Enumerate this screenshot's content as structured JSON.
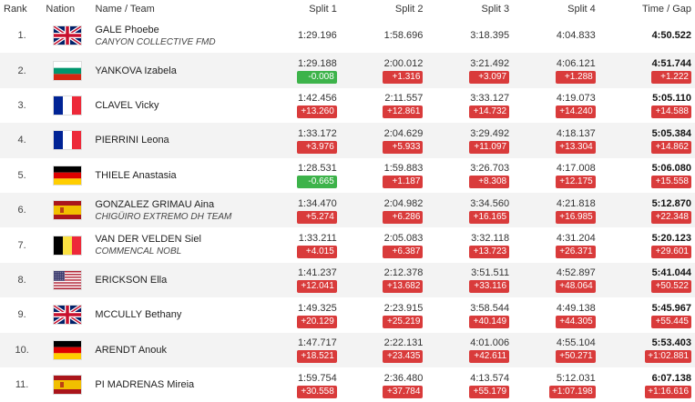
{
  "headers": {
    "rank": "Rank",
    "nation": "Nation",
    "name_team": "Name / Team",
    "split1": "Split 1",
    "split2": "Split 2",
    "split3": "Split 3",
    "split4": "Split 4",
    "time_gap": "Time / Gap"
  },
  "colors": {
    "gap_behind": "#d93b3b",
    "gap_ahead": "#3db34a",
    "row_alt": "#f3f3f3"
  },
  "rows": [
    {
      "rank": "1.",
      "flag": "gb",
      "name": "GALE Phoebe",
      "team": "CANYON COLLECTIVE FMD",
      "splits": [
        {
          "t": "1:29.196",
          "g": ""
        },
        {
          "t": "1:58.696",
          "g": ""
        },
        {
          "t": "3:18.395",
          "g": ""
        },
        {
          "t": "4:04.833",
          "g": ""
        }
      ],
      "time": "4:50.522",
      "gap": ""
    },
    {
      "rank": "2.",
      "flag": "bg",
      "name": "YANKOVA Izabela",
      "team": "",
      "splits": [
        {
          "t": "1:29.188",
          "g": "-0.008",
          "c": "green"
        },
        {
          "t": "2:00.012",
          "g": "+1.316",
          "c": "red"
        },
        {
          "t": "3:21.492",
          "g": "+3.097",
          "c": "red"
        },
        {
          "t": "4:06.121",
          "g": "+1.288",
          "c": "red"
        }
      ],
      "time": "4:51.744",
      "gap": "+1.222"
    },
    {
      "rank": "3.",
      "flag": "fr",
      "name": "CLAVEL Vicky",
      "team": "",
      "splits": [
        {
          "t": "1:42.456",
          "g": "+13.260",
          "c": "red"
        },
        {
          "t": "2:11.557",
          "g": "+12.861",
          "c": "red"
        },
        {
          "t": "3:33.127",
          "g": "+14.732",
          "c": "red"
        },
        {
          "t": "4:19.073",
          "g": "+14.240",
          "c": "red"
        }
      ],
      "time": "5:05.110",
      "gap": "+14.588"
    },
    {
      "rank": "4.",
      "flag": "fr",
      "name": "PIERRINI Leona",
      "team": "",
      "splits": [
        {
          "t": "1:33.172",
          "g": "+3.976",
          "c": "red"
        },
        {
          "t": "2:04.629",
          "g": "+5.933",
          "c": "red"
        },
        {
          "t": "3:29.492",
          "g": "+11.097",
          "c": "red"
        },
        {
          "t": "4:18.137",
          "g": "+13.304",
          "c": "red"
        }
      ],
      "time": "5:05.384",
      "gap": "+14.862"
    },
    {
      "rank": "5.",
      "flag": "de",
      "name": "THIELE Anastasia",
      "team": "",
      "splits": [
        {
          "t": "1:28.531",
          "g": "-0.665",
          "c": "green"
        },
        {
          "t": "1:59.883",
          "g": "+1.187",
          "c": "red"
        },
        {
          "t": "3:26.703",
          "g": "+8.308",
          "c": "red"
        },
        {
          "t": "4:17.008",
          "g": "+12.175",
          "c": "red"
        }
      ],
      "time": "5:06.080",
      "gap": "+15.558"
    },
    {
      "rank": "6.",
      "flag": "es",
      "name": "GONZALEZ GRIMAU Aina",
      "team": "CHIGÜIRO EXTREMO DH TEAM",
      "splits": [
        {
          "t": "1:34.470",
          "g": "+5.274",
          "c": "red"
        },
        {
          "t": "2:04.982",
          "g": "+6.286",
          "c": "red"
        },
        {
          "t": "3:34.560",
          "g": "+16.165",
          "c": "red"
        },
        {
          "t": "4:21.818",
          "g": "+16.985",
          "c": "red"
        }
      ],
      "time": "5:12.870",
      "gap": "+22.348"
    },
    {
      "rank": "7.",
      "flag": "be",
      "name": "VAN DER VELDEN Siel",
      "team": "COMMENCAL NOBL",
      "splits": [
        {
          "t": "1:33.211",
          "g": "+4.015",
          "c": "red"
        },
        {
          "t": "2:05.083",
          "g": "+6.387",
          "c": "red"
        },
        {
          "t": "3:32.118",
          "g": "+13.723",
          "c": "red"
        },
        {
          "t": "4:31.204",
          "g": "+26.371",
          "c": "red"
        }
      ],
      "time": "5:20.123",
      "gap": "+29.601"
    },
    {
      "rank": "8.",
      "flag": "us",
      "name": "ERICKSON Ella",
      "team": "",
      "splits": [
        {
          "t": "1:41.237",
          "g": "+12.041",
          "c": "red"
        },
        {
          "t": "2:12.378",
          "g": "+13.682",
          "c": "red"
        },
        {
          "t": "3:51.511",
          "g": "+33.116",
          "c": "red"
        },
        {
          "t": "4:52.897",
          "g": "+48.064",
          "c": "red"
        }
      ],
      "time": "5:41.044",
      "gap": "+50.522"
    },
    {
      "rank": "9.",
      "flag": "gb",
      "name": "MCCULLY Bethany",
      "team": "",
      "splits": [
        {
          "t": "1:49.325",
          "g": "+20.129",
          "c": "red"
        },
        {
          "t": "2:23.915",
          "g": "+25.219",
          "c": "red"
        },
        {
          "t": "3:58.544",
          "g": "+40.149",
          "c": "red"
        },
        {
          "t": "4:49.138",
          "g": "+44.305",
          "c": "red"
        }
      ],
      "time": "5:45.967",
      "gap": "+55.445"
    },
    {
      "rank": "10.",
      "flag": "de",
      "name": "ARENDT Anouk",
      "team": "",
      "splits": [
        {
          "t": "1:47.717",
          "g": "+18.521",
          "c": "red"
        },
        {
          "t": "2:22.131",
          "g": "+23.435",
          "c": "red"
        },
        {
          "t": "4:01.006",
          "g": "+42.611",
          "c": "red"
        },
        {
          "t": "4:55.104",
          "g": "+50.271",
          "c": "red"
        }
      ],
      "time": "5:53.403",
      "gap": "+1:02.881"
    },
    {
      "rank": "11.",
      "flag": "es",
      "name": "PI MADRENAS Mireia",
      "team": "",
      "splits": [
        {
          "t": "1:59.754",
          "g": "+30.558",
          "c": "red"
        },
        {
          "t": "2:36.480",
          "g": "+37.784",
          "c": "red"
        },
        {
          "t": "4:13.574",
          "g": "+55.179",
          "c": "red"
        },
        {
          "t": "5:12.031",
          "g": "+1:07.198",
          "c": "red"
        }
      ],
      "time": "6:07.138",
      "gap": "+1:16.616"
    }
  ]
}
